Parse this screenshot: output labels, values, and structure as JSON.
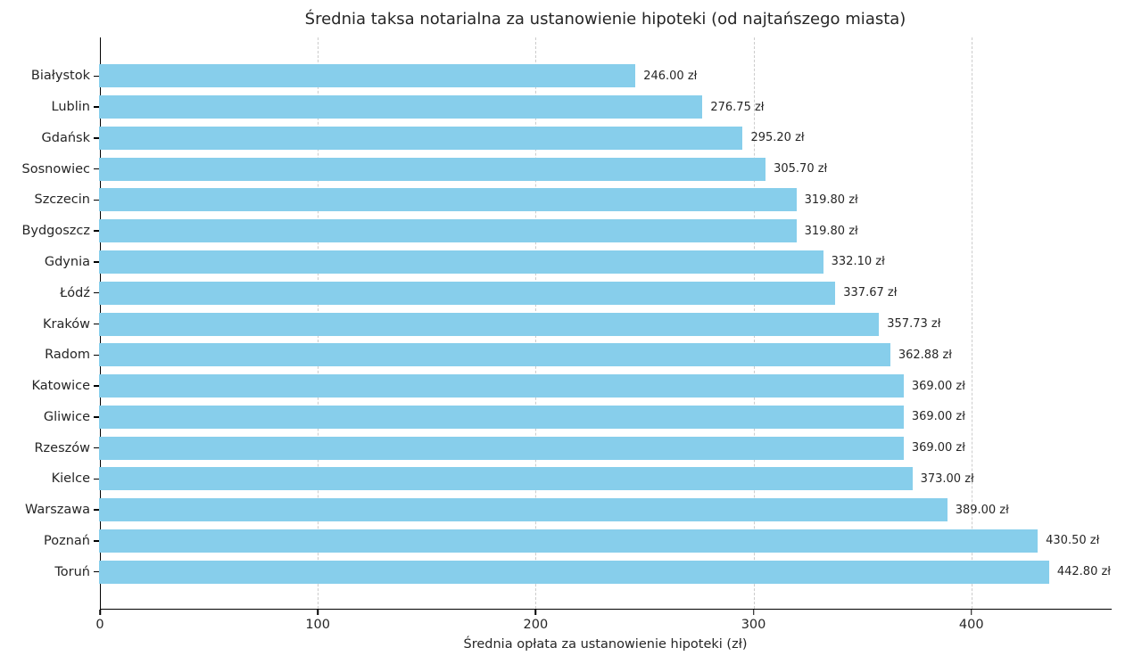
{
  "title": "Średnia taksa notarialna za ustanowienie hipoteki (od najtańszego miasta)",
  "chart_data": {
    "type": "bar",
    "orientation": "horizontal",
    "title": "Średnia taksa notarialna za ustanowienie hipoteki (od najtańszego miasta)",
    "xlabel": "Średnia opłata za ustanowienie hipoteki (zł)",
    "ylabel": "",
    "categories": [
      "Białystok",
      "Lublin",
      "Gdańsk",
      "Sosnowiec",
      "Szczecin",
      "Bydgoszcz",
      "Gdynia",
      "Łódź",
      "Kraków",
      "Radom",
      "Katowice",
      "Gliwice",
      "Rzeszów",
      "Kielce",
      "Warszawa",
      "Poznań",
      "Toruń"
    ],
    "values": [
      246.0,
      276.75,
      295.2,
      305.7,
      319.8,
      319.8,
      332.1,
      337.67,
      357.73,
      362.88,
      369.0,
      369.0,
      369.0,
      373.0,
      389.0,
      430.5,
      442.8
    ],
    "value_labels": [
      "246.00 zł",
      "276.75 zł",
      "295.20 zł",
      "305.70 zł",
      "319.80 zł",
      "319.80 zł",
      "332.10 zł",
      "337.67 zł",
      "357.73 zł",
      "362.88 zł",
      "369.00 zł",
      "369.00 zł",
      "369.00 zł",
      "373.00 zł",
      "389.00 zł",
      "430.50 zł",
      "442.80 zł"
    ],
    "xlim": [
      0,
      464
    ],
    "xticks": [
      0,
      100,
      200,
      300,
      400
    ],
    "xtick_labels": [
      "0",
      "100",
      "200",
      "300",
      "400"
    ],
    "grid": "vertical-dashed",
    "legend": "none",
    "bar_color": "#87CEEB",
    "background_color": "#ffffff",
    "text_color": "#262626",
    "grid_color": "#cccccc"
  }
}
